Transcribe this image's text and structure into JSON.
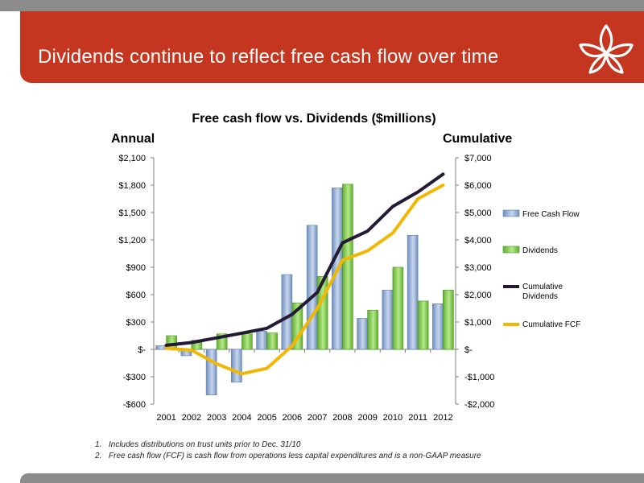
{
  "header": {
    "title": "Dividends continue to reflect free cash flow over time",
    "logo": "lotus-flower-logo"
  },
  "colors": {
    "header_red": "#c4361f",
    "bar_blue": "#8fa9cf",
    "bar_green": "#8ccf56",
    "line_dark": "#231a33",
    "line_gold": "#f2b705"
  },
  "chart_data": {
    "type": "bar",
    "title": "Free cash flow vs. Dividends ($millions)",
    "left_axis": {
      "label": "Annual",
      "ylim": [
        -600,
        2100
      ],
      "ticks": [
        "$2,100",
        "$1,800",
        "$1,500",
        "$1,200",
        "$900",
        "$600",
        "$300",
        "$-",
        "-$300",
        "-$600"
      ]
    },
    "right_axis": {
      "label": "Cumulative",
      "ylim": [
        -2000,
        7000
      ],
      "ticks": [
        "$7,000",
        "$6,000",
        "$5,000",
        "$4,000",
        "$3,000",
        "$2,000",
        "$1,000",
        "$-",
        "-$1,000",
        "-$2,000"
      ]
    },
    "categories": [
      "2001",
      "2002",
      "2003",
      "2004",
      "2005",
      "2006",
      "2007",
      "2008",
      "2009",
      "2010",
      "2011",
      "2012"
    ],
    "series": [
      {
        "name": "Free Cash Flow",
        "type": "bar",
        "axis": "left",
        "values": [
          40,
          -70,
          -500,
          -360,
          200,
          820,
          1360,
          1770,
          340,
          650,
          1250,
          500
        ]
      },
      {
        "name": "Dividends",
        "type": "bar",
        "axis": "left",
        "values": [
          150,
          100,
          170,
          170,
          180,
          510,
          800,
          1810,
          430,
          900,
          530,
          650
        ]
      },
      {
        "name": "Cumulative Dividends",
        "type": "line",
        "axis": "right",
        "values": [
          150,
          250,
          420,
          590,
          770,
          1280,
          2080,
          3890,
          4320,
          5220,
          5750,
          6400
        ]
      },
      {
        "name": "Cumulative FCF",
        "type": "line",
        "axis": "right",
        "values": [
          40,
          -30,
          -530,
          -890,
          -690,
          130,
          1490,
          3260,
          3600,
          4250,
          5500,
          6000
        ]
      }
    ],
    "legend_position": "right",
    "grid": false
  },
  "footnotes": [
    {
      "num": "1.",
      "text": "Includes distributions on trust units prior to Dec. 31/10"
    },
    {
      "num": "2.",
      "text": "Free cash flow (FCF) is cash flow from operations less capital expenditures and is a non-GAAP measure"
    }
  ]
}
